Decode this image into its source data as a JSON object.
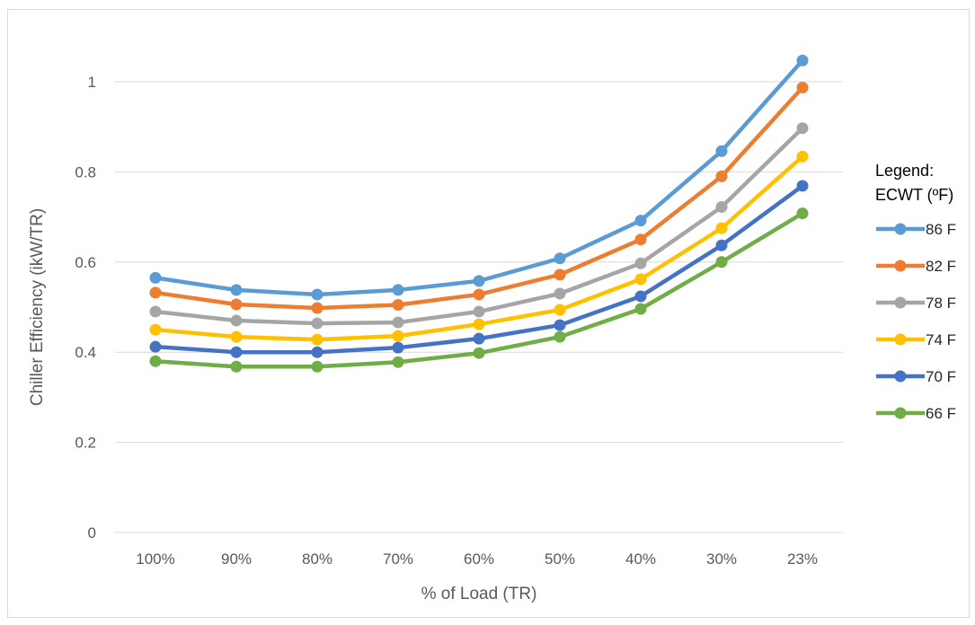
{
  "chart_data": {
    "type": "line",
    "title": "",
    "xlabel": "% of Load (TR)",
    "ylabel": "Chiller Efficiency (ikW/TR)",
    "categories": [
      "100%",
      "90%",
      "80%",
      "70%",
      "60%",
      "50%",
      "40%",
      "30%",
      "23%"
    ],
    "ylim": [
      0,
      1.0
    ],
    "yticks": [
      "0",
      "0.2",
      "0.4",
      "0.6",
      "0.8",
      "1"
    ],
    "ytick_values": [
      0,
      0.2,
      0.4,
      0.6,
      0.8,
      1.0
    ],
    "grid": true,
    "legend_position": "right",
    "legend_title": [
      "Legend:",
      "ECWT (ºF)"
    ],
    "series": [
      {
        "name": "86 F",
        "color": "#5b9bd5",
        "values": [
          0.565,
          0.538,
          0.528,
          0.538,
          0.558,
          0.608,
          0.692,
          0.846,
          1.047
        ]
      },
      {
        "name": "82 F",
        "color": "#ed7d31",
        "values": [
          0.532,
          0.506,
          0.498,
          0.505,
          0.528,
          0.572,
          0.65,
          0.79,
          0.987
        ]
      },
      {
        "name": "78 F",
        "color": "#a5a5a5",
        "values": [
          0.49,
          0.47,
          0.464,
          0.466,
          0.49,
          0.53,
          0.597,
          0.722,
          0.897
        ]
      },
      {
        "name": "74 F",
        "color": "#ffc000",
        "values": [
          0.45,
          0.434,
          0.428,
          0.436,
          0.462,
          0.494,
          0.562,
          0.675,
          0.834
        ]
      },
      {
        "name": "70 F",
        "color": "#4472c4",
        "values": [
          0.412,
          0.4,
          0.4,
          0.41,
          0.43,
          0.46,
          0.524,
          0.637,
          0.769
        ]
      },
      {
        "name": "66 F",
        "color": "#70ad47",
        "values": [
          0.38,
          0.368,
          0.368,
          0.378,
          0.398,
          0.434,
          0.496,
          0.6,
          0.708
        ]
      }
    ]
  }
}
